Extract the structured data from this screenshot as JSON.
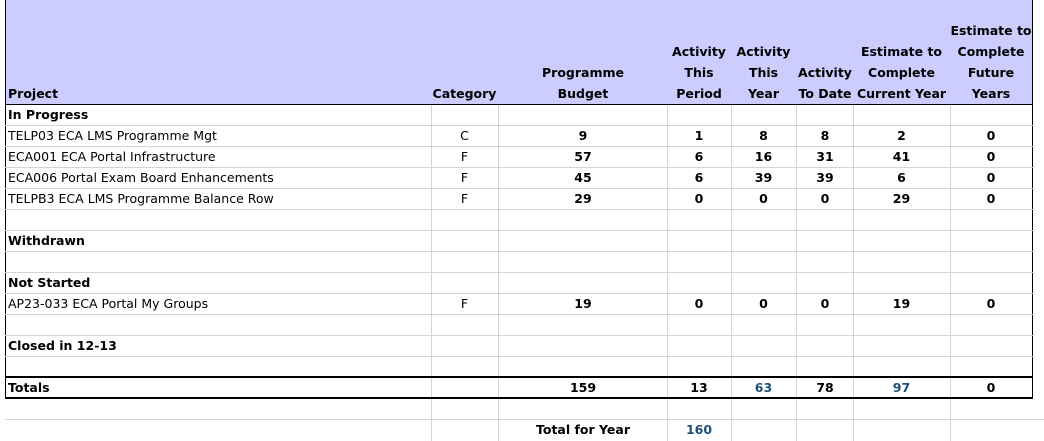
{
  "headers": {
    "project": "Project",
    "category": "Category",
    "budget": [
      "Programme",
      "Budget"
    ],
    "period": [
      "Activity",
      "This",
      "Period"
    ],
    "year": [
      "Activity",
      "This",
      "Year"
    ],
    "todate": [
      "Activity",
      "To Date"
    ],
    "ecy": [
      "Estimate to",
      "Complete",
      "Current Year"
    ],
    "efy": [
      "Estimate to",
      "Complete",
      "Future",
      "Years"
    ]
  },
  "sections": {
    "in_progress": "In Progress",
    "withdrawn": "Withdrawn",
    "not_started": "Not Started",
    "closed": "Closed in 12-13"
  },
  "rows": [
    {
      "project": "TELP03 ECA LMS Programme Mgt",
      "category": "C",
      "budget": "9",
      "period": "1",
      "year": "8",
      "todate": "8",
      "ecy": "2",
      "efy": "0"
    },
    {
      "project": "ECA001 ECA Portal Infrastructure",
      "category": "F",
      "budget": "57",
      "period": "6",
      "year": "16",
      "todate": "31",
      "ecy": "41",
      "efy": "0"
    },
    {
      "project": "ECA006 Portal Exam Board Enhancements",
      "category": "F",
      "budget": "45",
      "period": "6",
      "year": "39",
      "todate": "39",
      "ecy": "6",
      "efy": "0"
    },
    {
      "project": "TELPB3 ECA LMS Programme Balance Row",
      "category": "F",
      "budget": "29",
      "period": "0",
      "year": "0",
      "todate": "0",
      "ecy": "29",
      "efy": "0"
    },
    {
      "project": "AP23-033 ECA Portal My Groups",
      "category": "F",
      "budget": "19",
      "period": "0",
      "year": "0",
      "todate": "0",
      "ecy": "19",
      "efy": "0"
    }
  ],
  "totals": {
    "label": "Totals",
    "budget": "159",
    "period": "13",
    "year": "63",
    "todate": "78",
    "ecy": "97",
    "efy": "0"
  },
  "footer": {
    "label": "Total for Year",
    "value": "160"
  }
}
